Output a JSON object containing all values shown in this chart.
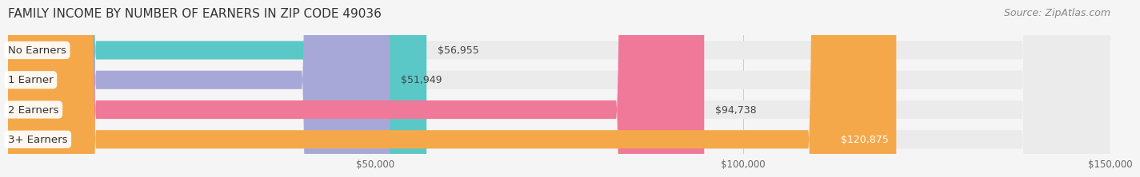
{
  "title": "FAMILY INCOME BY NUMBER OF EARNERS IN ZIP CODE 49036",
  "source": "Source: ZipAtlas.com",
  "categories": [
    "No Earners",
    "1 Earner",
    "2 Earners",
    "3+ Earners"
  ],
  "values": [
    56955,
    51949,
    94738,
    120875
  ],
  "bar_colors": [
    "#5bc8c8",
    "#a8a8d8",
    "#f07898",
    "#f5a84a"
  ],
  "label_colors": [
    "#222222",
    "#222222",
    "#222222",
    "#ffffff"
  ],
  "value_labels": [
    "$56,955",
    "$51,949",
    "$94,738",
    "$120,875"
  ],
  "xlim": [
    0,
    150000
  ],
  "xticks": [
    50000,
    100000,
    150000
  ],
  "xtick_labels": [
    "$50,000",
    "$100,000",
    "$150,000"
  ],
  "background_color": "#f5f5f5",
  "bar_background_color": "#ebebeb",
  "title_fontsize": 11,
  "source_fontsize": 9,
  "bar_height": 0.62,
  "bar_gap": 0.18
}
